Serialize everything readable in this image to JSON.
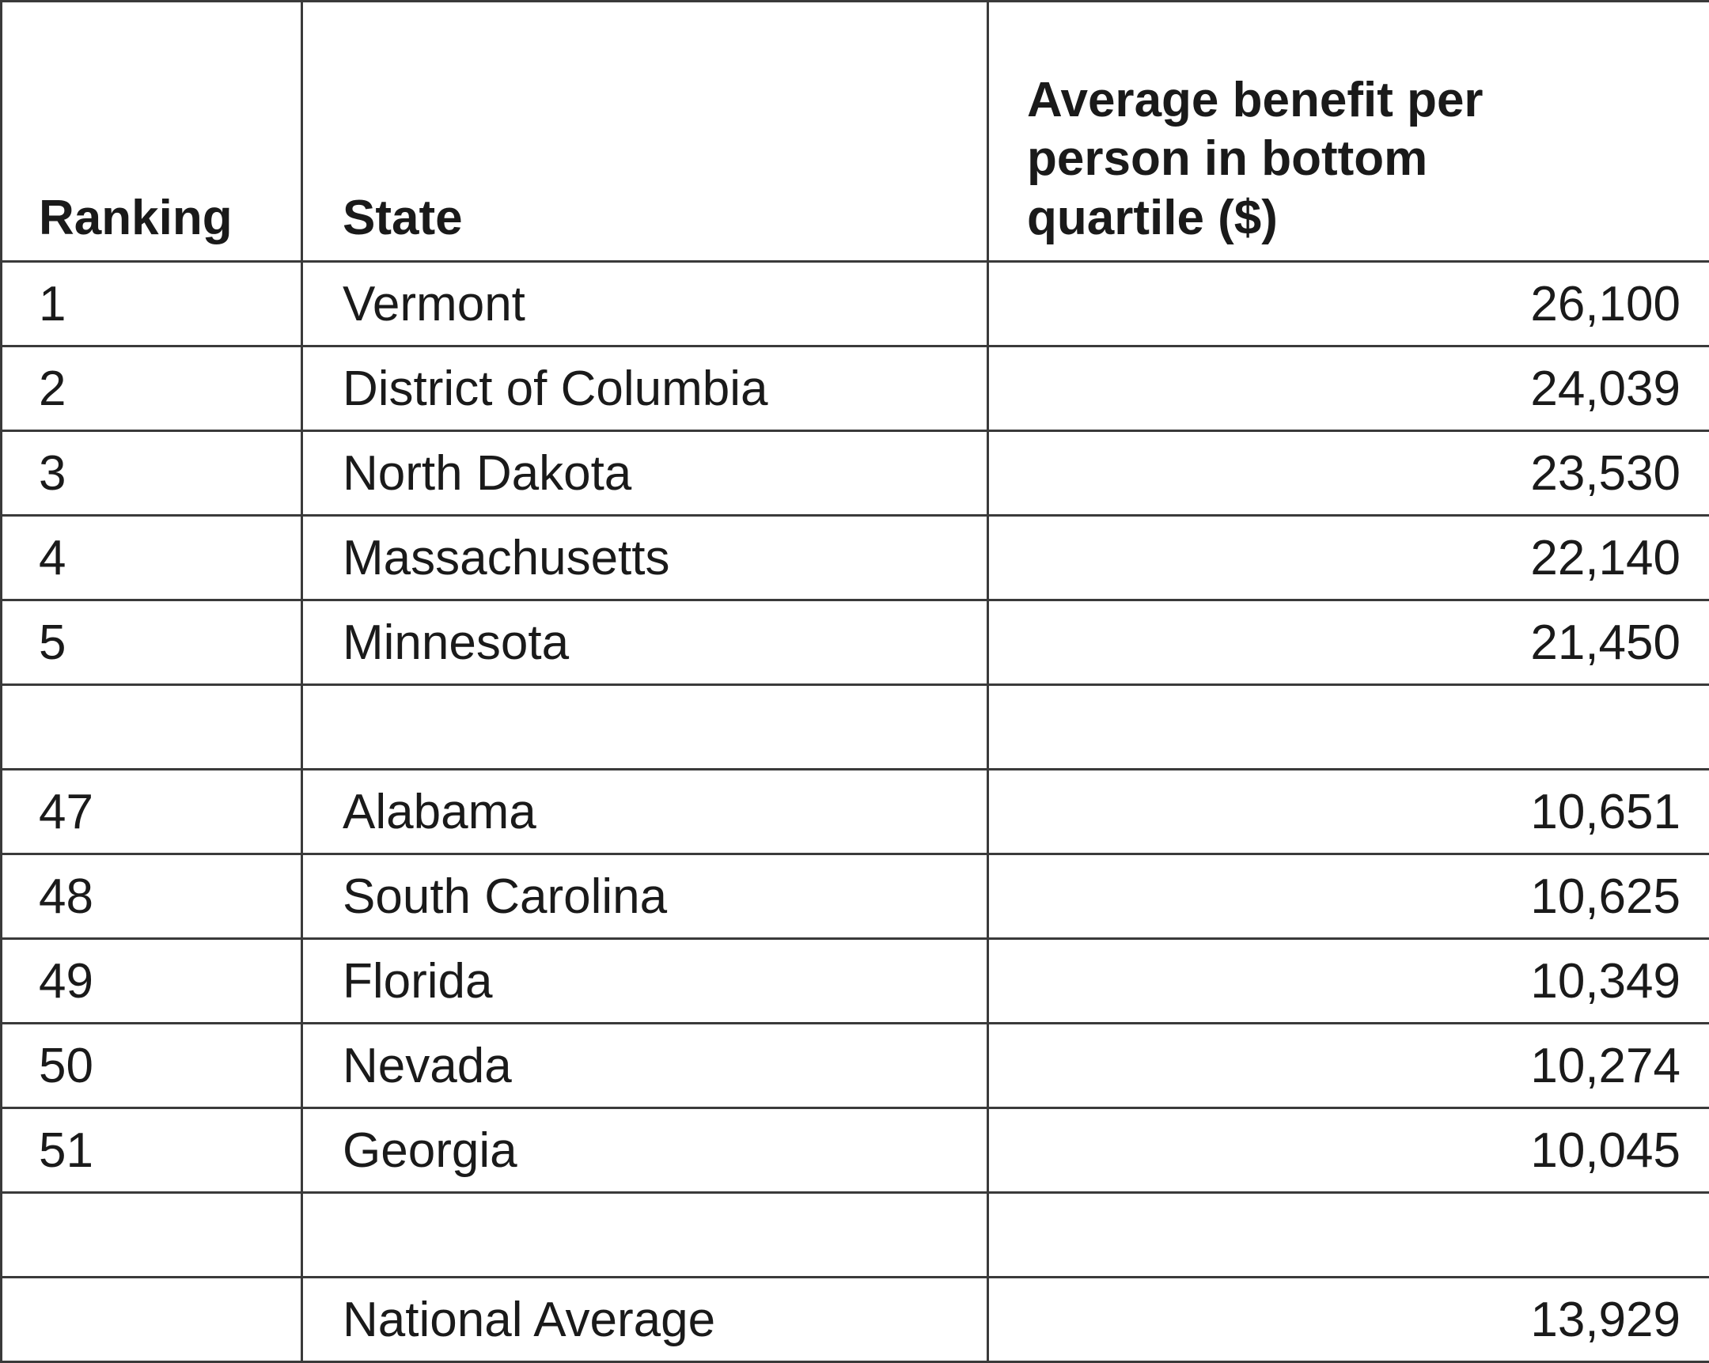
{
  "table": {
    "header": [
      "Ranking",
      "State",
      "Average benefit per person in bottom quartile ($)"
    ],
    "top_rows": [
      [
        "1",
        "Vermont",
        "26,100"
      ],
      [
        "2",
        "District of Columbia",
        "24,039"
      ],
      [
        "3",
        "North Dakota",
        "23,530"
      ],
      [
        "4",
        "Massachusetts",
        "22,140"
      ],
      [
        "5",
        "Minnesota",
        "21,450"
      ]
    ],
    "bottom_rows": [
      [
        "47",
        "Alabama",
        "10,651"
      ],
      [
        "48",
        "South Carolina",
        "10,625"
      ],
      [
        "49",
        "Florida",
        "10,349"
      ],
      [
        "50",
        "Nevada",
        "10,274"
      ],
      [
        "51",
        "Georgia",
        "10,045"
      ]
    ],
    "national_average": {
      "label": "National Average",
      "value": "13,929"
    }
  }
}
